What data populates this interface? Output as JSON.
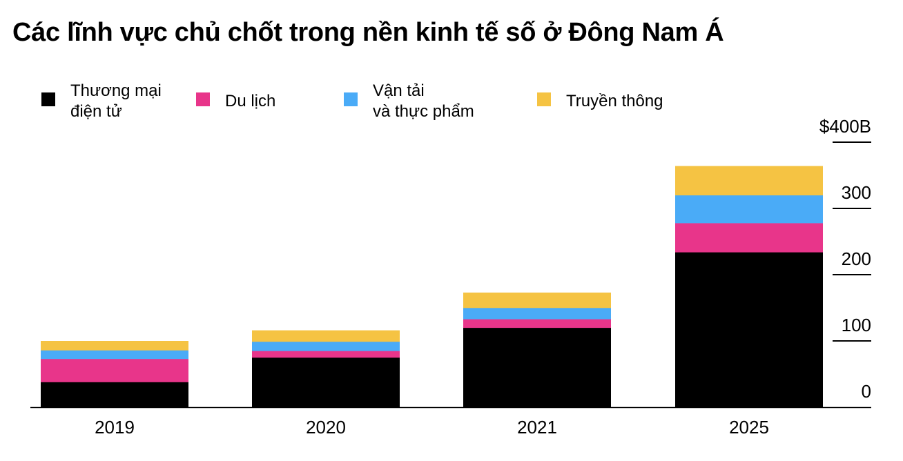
{
  "title": "Các lĩnh vực chủ chốt trong nền kinh tế số ở Đông Nam Á",
  "legend": [
    {
      "lines": [
        "Thương mại",
        "điện tử"
      ],
      "color": "#000000"
    },
    {
      "lines": [
        "Du lịch"
      ],
      "color": "#E8358A"
    },
    {
      "lines": [
        "Vận tải",
        "và thực phẩm"
      ],
      "color": "#4AABF7"
    },
    {
      "lines": [
        "Truyền thông"
      ],
      "color": "#F5C343"
    }
  ],
  "chart_data": {
    "type": "bar",
    "stacked": true,
    "categories": [
      "2019",
      "2020",
      "2021",
      "2025"
    ],
    "series": [
      {
        "name": "Thương mại điện tử",
        "color": "#000000",
        "values": [
          38,
          75,
          120,
          234
        ]
      },
      {
        "name": "Du lịch",
        "color": "#E8358A",
        "values": [
          35,
          10,
          13,
          44
        ]
      },
      {
        "name": "Vận tải và thực phẩm",
        "color": "#4AABF7",
        "values": [
          13,
          14,
          17,
          42
        ]
      },
      {
        "name": "Truyền thông",
        "color": "#F5C343",
        "values": [
          14,
          17,
          23,
          44
        ]
      }
    ],
    "y_axis": {
      "min": 0,
      "max": 400,
      "ticks": [
        0,
        100,
        200,
        300,
        400
      ],
      "tick_labels": [
        "0",
        "100",
        "200",
        "300",
        "$400B"
      ],
      "position": "right"
    },
    "grid": false,
    "legend_position": "top"
  }
}
